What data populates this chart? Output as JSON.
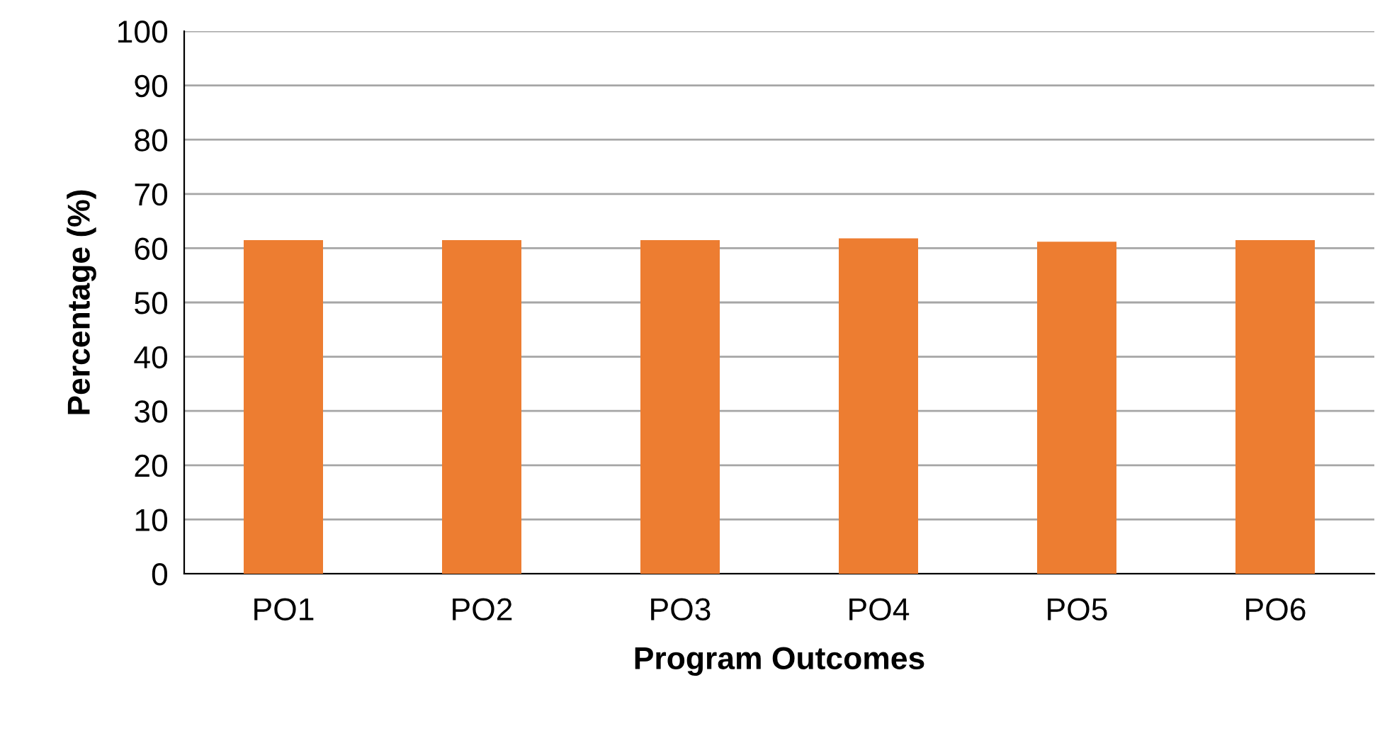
{
  "chart_data": {
    "type": "bar",
    "xlabel": "Program Outcomes",
    "ylabel": "Percentage (%)",
    "categories": [
      "PO1",
      "PO2",
      "PO3",
      "PO4",
      "PO5",
      "PO6"
    ],
    "series": [
      {
        "color": "#ed7d31",
        "values": [
          61.5,
          61.5,
          61.5,
          61.8,
          61.2,
          61.5
        ]
      }
    ],
    "ylim": [
      0,
      100
    ],
    "yticks": [
      0,
      10,
      20,
      30,
      40,
      50,
      60,
      70,
      80,
      90,
      100
    ],
    "grid": "y",
    "legend": false
  }
}
